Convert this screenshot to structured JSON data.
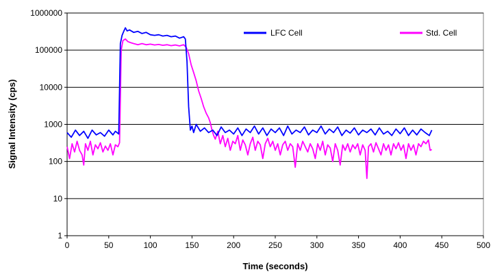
{
  "chart_data": {
    "type": "line",
    "title": "",
    "xlabel": "Time (seconds)",
    "ylabel": "Signal Intensity (cps)",
    "xlim": [
      0,
      500
    ],
    "ylim": [
      1,
      1000000
    ],
    "yscale": "log",
    "grid": "horizontal major gridlines",
    "legend_position": "top-right",
    "x_ticks": [
      "0",
      "50",
      "100",
      "150",
      "200",
      "250",
      "300",
      "350",
      "400",
      "450",
      "500"
    ],
    "y_ticks": [
      "1",
      "10",
      "100",
      "1000",
      "10000",
      "100000",
      "1000000"
    ],
    "series": [
      {
        "name": "LFC Cell",
        "color": "#0000ff",
        "points": [
          [
            0,
            600
          ],
          [
            5,
            450
          ],
          [
            10,
            700
          ],
          [
            15,
            500
          ],
          [
            20,
            650
          ],
          [
            25,
            420
          ],
          [
            30,
            700
          ],
          [
            35,
            520
          ],
          [
            40,
            600
          ],
          [
            45,
            480
          ],
          [
            50,
            700
          ],
          [
            55,
            520
          ],
          [
            58,
            650
          ],
          [
            62,
            550
          ],
          [
            64,
            150000
          ],
          [
            66,
            250000
          ],
          [
            68,
            320000
          ],
          [
            70,
            400000
          ],
          [
            72,
            330000
          ],
          [
            75,
            350000
          ],
          [
            80,
            300000
          ],
          [
            85,
            320000
          ],
          [
            90,
            280000
          ],
          [
            95,
            300000
          ],
          [
            100,
            260000
          ],
          [
            105,
            250000
          ],
          [
            110,
            260000
          ],
          [
            115,
            240000
          ],
          [
            120,
            250000
          ],
          [
            125,
            230000
          ],
          [
            130,
            240000
          ],
          [
            135,
            210000
          ],
          [
            140,
            230000
          ],
          [
            142,
            200000
          ],
          [
            144,
            50000
          ],
          [
            146,
            3000
          ],
          [
            148,
            700
          ],
          [
            150,
            900
          ],
          [
            152,
            600
          ],
          [
            155,
            1000
          ],
          [
            160,
            650
          ],
          [
            165,
            800
          ],
          [
            170,
            600
          ],
          [
            175,
            700
          ],
          [
            180,
            500
          ],
          [
            185,
            850
          ],
          [
            190,
            600
          ],
          [
            195,
            700
          ],
          [
            200,
            550
          ],
          [
            205,
            800
          ],
          [
            210,
            500
          ],
          [
            215,
            750
          ],
          [
            220,
            600
          ],
          [
            225,
            900
          ],
          [
            230,
            550
          ],
          [
            235,
            800
          ],
          [
            240,
            500
          ],
          [
            245,
            750
          ],
          [
            250,
            600
          ],
          [
            255,
            800
          ],
          [
            260,
            500
          ],
          [
            265,
            900
          ],
          [
            270,
            550
          ],
          [
            275,
            700
          ],
          [
            280,
            600
          ],
          [
            285,
            850
          ],
          [
            290,
            520
          ],
          [
            295,
            700
          ],
          [
            300,
            600
          ],
          [
            305,
            900
          ],
          [
            310,
            550
          ],
          [
            315,
            750
          ],
          [
            320,
            600
          ],
          [
            325,
            850
          ],
          [
            330,
            500
          ],
          [
            335,
            700
          ],
          [
            340,
            580
          ],
          [
            345,
            800
          ],
          [
            350,
            520
          ],
          [
            355,
            700
          ],
          [
            360,
            600
          ],
          [
            365,
            750
          ],
          [
            370,
            520
          ],
          [
            375,
            800
          ],
          [
            380,
            550
          ],
          [
            385,
            650
          ],
          [
            390,
            500
          ],
          [
            395,
            750
          ],
          [
            400,
            560
          ],
          [
            405,
            800
          ],
          [
            410,
            500
          ],
          [
            415,
            700
          ],
          [
            420,
            520
          ],
          [
            425,
            750
          ],
          [
            430,
            600
          ],
          [
            435,
            500
          ],
          [
            438,
            700
          ]
        ]
      },
      {
        "name": "Std. Cell",
        "color": "#ff00ff",
        "points": [
          [
            0,
            250
          ],
          [
            3,
            120
          ],
          [
            6,
            300
          ],
          [
            9,
            180
          ],
          [
            12,
            350
          ],
          [
            15,
            200
          ],
          [
            18,
            150
          ],
          [
            20,
            80
          ],
          [
            22,
            300
          ],
          [
            25,
            200
          ],
          [
            28,
            350
          ],
          [
            31,
            150
          ],
          [
            34,
            280
          ],
          [
            37,
            220
          ],
          [
            40,
            320
          ],
          [
            43,
            180
          ],
          [
            46,
            260
          ],
          [
            49,
            200
          ],
          [
            52,
            300
          ],
          [
            55,
            150
          ],
          [
            58,
            280
          ],
          [
            61,
            250
          ],
          [
            63,
            320
          ],
          [
            65,
            100000
          ],
          [
            67,
            180000
          ],
          [
            70,
            200000
          ],
          [
            73,
            170000
          ],
          [
            76,
            160000
          ],
          [
            80,
            150000
          ],
          [
            85,
            140000
          ],
          [
            90,
            150000
          ],
          [
            95,
            140000
          ],
          [
            100,
            145000
          ],
          [
            105,
            138000
          ],
          [
            110,
            142000
          ],
          [
            115,
            135000
          ],
          [
            120,
            140000
          ],
          [
            125,
            132000
          ],
          [
            130,
            138000
          ],
          [
            135,
            130000
          ],
          [
            140,
            140000
          ],
          [
            143,
            120000
          ],
          [
            146,
            80000
          ],
          [
            149,
            40000
          ],
          [
            152,
            25000
          ],
          [
            155,
            15000
          ],
          [
            158,
            8000
          ],
          [
            161,
            5000
          ],
          [
            164,
            3000
          ],
          [
            167,
            2000
          ],
          [
            170,
            1500
          ],
          [
            172,
            1100
          ],
          [
            174,
            700
          ],
          [
            176,
            500
          ],
          [
            178,
            400
          ],
          [
            181,
            650
          ],
          [
            184,
            300
          ],
          [
            187,
            500
          ],
          [
            190,
            250
          ],
          [
            193,
            420
          ],
          [
            196,
            200
          ],
          [
            199,
            350
          ],
          [
            202,
            300
          ],
          [
            205,
            500
          ],
          [
            208,
            200
          ],
          [
            211,
            380
          ],
          [
            214,
            280
          ],
          [
            217,
            150
          ],
          [
            220,
            300
          ],
          [
            223,
            450
          ],
          [
            226,
            200
          ],
          [
            229,
            350
          ],
          [
            232,
            280
          ],
          [
            235,
            120
          ],
          [
            238,
            300
          ],
          [
            241,
            420
          ],
          [
            244,
            250
          ],
          [
            247,
            350
          ],
          [
            250,
            200
          ],
          [
            253,
            300
          ],
          [
            256,
            150
          ],
          [
            259,
            280
          ],
          [
            262,
            350
          ],
          [
            265,
            200
          ],
          [
            268,
            300
          ],
          [
            271,
            250
          ],
          [
            274,
            70
          ],
          [
            277,
            300
          ],
          [
            280,
            200
          ],
          [
            283,
            350
          ],
          [
            286,
            250
          ],
          [
            289,
            180
          ],
          [
            292,
            300
          ],
          [
            295,
            220
          ],
          [
            298,
            120
          ],
          [
            301,
            300
          ],
          [
            304,
            200
          ],
          [
            307,
            350
          ],
          [
            310,
            150
          ],
          [
            313,
            280
          ],
          [
            316,
            230
          ],
          [
            319,
            100
          ],
          [
            322,
            300
          ],
          [
            325,
            200
          ],
          [
            328,
            80
          ],
          [
            331,
            280
          ],
          [
            334,
            200
          ],
          [
            337,
            300
          ],
          [
            340,
            180
          ],
          [
            343,
            280
          ],
          [
            346,
            220
          ],
          [
            349,
            300
          ],
          [
            352,
            150
          ],
          [
            355,
            280
          ],
          [
            358,
            200
          ],
          [
            360,
            35
          ],
          [
            362,
            250
          ],
          [
            365,
            300
          ],
          [
            368,
            180
          ],
          [
            371,
            320
          ],
          [
            374,
            220
          ],
          [
            377,
            150
          ],
          [
            380,
            300
          ],
          [
            383,
            200
          ],
          [
            386,
            280
          ],
          [
            389,
            150
          ],
          [
            392,
            300
          ],
          [
            395,
            220
          ],
          [
            398,
            320
          ],
          [
            401,
            200
          ],
          [
            404,
            280
          ],
          [
            407,
            120
          ],
          [
            410,
            300
          ],
          [
            413,
            200
          ],
          [
            416,
            280
          ],
          [
            419,
            150
          ],
          [
            422,
            300
          ],
          [
            425,
            250
          ],
          [
            428,
            350
          ],
          [
            431,
            300
          ],
          [
            434,
            380
          ],
          [
            436,
            200
          ],
          [
            438,
            210
          ]
        ]
      }
    ]
  }
}
